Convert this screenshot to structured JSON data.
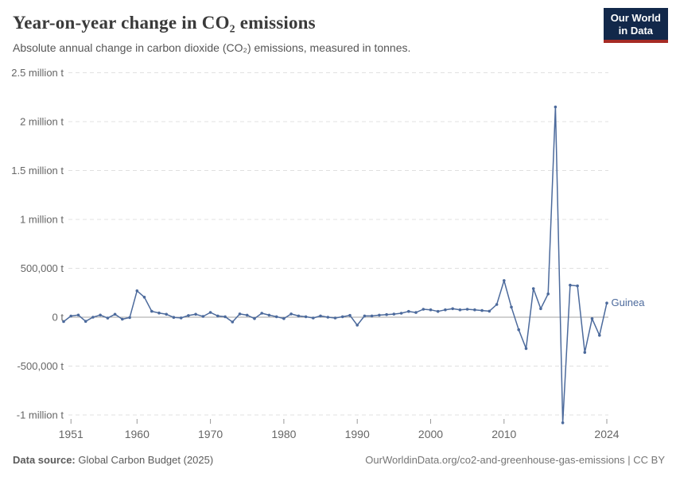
{
  "header": {
    "title": "Year-on-year change in CO₂ emissions",
    "subtitle": "Absolute annual change in carbon dioxide (CO₂) emissions, measured in tonnes.",
    "logo": {
      "line1": "Our World",
      "line2": "in Data"
    }
  },
  "footer": {
    "source_label": "Data source:",
    "source_value": " Global Carbon Budget (2025)",
    "license_text": "OurWorldinData.org/co2-and-greenhouse-gas-emissions | CC BY"
  },
  "colors": {
    "series_blue": "#4c6a9c",
    "gridline": "#e0e0e0",
    "zero_line": "#a3a3a3",
    "axis_text": "#666666",
    "logo_bg": "#12284a",
    "logo_red": "#a62b25"
  },
  "chart_data": {
    "type": "line",
    "title": "Year-on-year change in CO₂ emissions",
    "subtitle": "Absolute annual change in carbon dioxide (CO₂) emissions, measured in tonnes.",
    "xlabel": "",
    "ylabel": "",
    "grid": "horizontal-dashed",
    "zero_line": true,
    "legend_position": "end-of-line-label",
    "xlim": [
      1950,
      2024
    ],
    "ylim": [
      -1100000,
      2550000
    ],
    "x_ticks": [
      1951,
      1960,
      1970,
      1980,
      1990,
      2000,
      2010,
      2024
    ],
    "y_ticks": [
      {
        "value": 2500000,
        "label": "2.5 million t"
      },
      {
        "value": 2000000,
        "label": "2 million t"
      },
      {
        "value": 1500000,
        "label": "1.5 million t"
      },
      {
        "value": 1000000,
        "label": "1 million t"
      },
      {
        "value": 500000,
        "label": "500,000 t"
      },
      {
        "value": 0,
        "label": "0 t"
      },
      {
        "value": -500000,
        "label": "-500,000 t"
      },
      {
        "value": -1000000,
        "label": "-1 million t"
      }
    ],
    "series": [
      {
        "name": "Guinea",
        "color": "#4c6a9c",
        "x": [
          1950,
          1951,
          1952,
          1953,
          1954,
          1955,
          1956,
          1957,
          1958,
          1959,
          1960,
          1961,
          1962,
          1963,
          1964,
          1965,
          1966,
          1967,
          1968,
          1969,
          1970,
          1971,
          1972,
          1973,
          1974,
          1975,
          1976,
          1977,
          1978,
          1979,
          1980,
          1981,
          1982,
          1983,
          1984,
          1985,
          1986,
          1987,
          1988,
          1989,
          1990,
          1991,
          1992,
          1993,
          1994,
          1995,
          1996,
          1997,
          1998,
          1999,
          2000,
          2001,
          2002,
          2003,
          2004,
          2005,
          2006,
          2007,
          2008,
          2009,
          2010,
          2011,
          2012,
          2013,
          2014,
          2015,
          2016,
          2017,
          2018,
          2019,
          2020,
          2021,
          2022,
          2023,
          2024
        ],
        "values": [
          -45000,
          12000,
          22000,
          -42000,
          0,
          22000,
          -9000,
          30000,
          -20000,
          -3000,
          270000,
          205000,
          60000,
          43000,
          30000,
          -2000,
          -7000,
          17000,
          30000,
          8000,
          49000,
          13000,
          5000,
          -49000,
          33000,
          21000,
          -14000,
          41000,
          21000,
          5000,
          -14000,
          33000,
          13000,
          5000,
          -8000,
          13000,
          0,
          -8000,
          5000,
          19000,
          -81000,
          13000,
          13000,
          21000,
          27000,
          32000,
          41000,
          59000,
          48000,
          81000,
          76000,
          59000,
          76000,
          87000,
          76000,
          81000,
          76000,
          68000,
          62000,
          130000,
          375000,
          103000,
          -128000,
          -320000,
          293000,
          87000,
          238000,
          2150000,
          -1080000,
          328000,
          320000,
          -360000,
          -15000,
          -185000,
          145000
        ]
      }
    ]
  }
}
